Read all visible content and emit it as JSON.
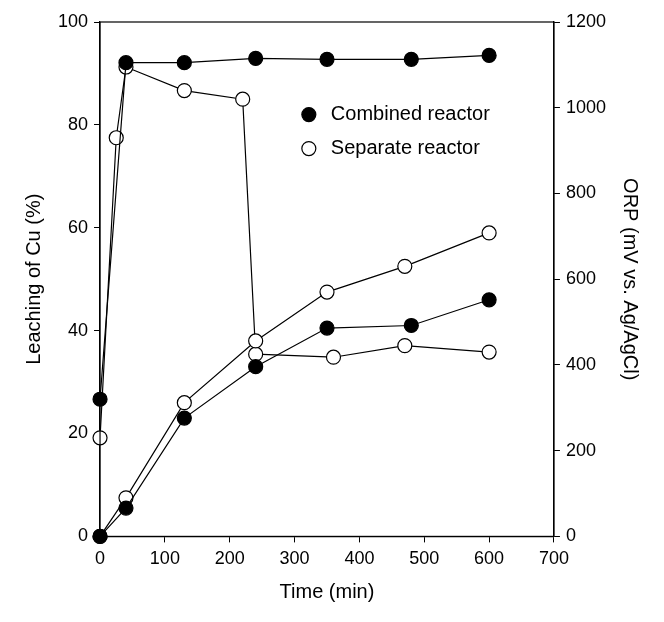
{
  "chart_data": {
    "type": "line",
    "x_label": "Time (min)",
    "y_label": "Leaching of Cu (%)",
    "y2_label": "ORP (mV vs. Ag/AgCl)",
    "xlim": [
      0,
      700
    ],
    "xticks": [
      0,
      100,
      200,
      300,
      400,
      500,
      600,
      700
    ],
    "ylim": [
      0,
      100
    ],
    "yticks": [
      0,
      20,
      40,
      60,
      80,
      100
    ],
    "y2lim": [
      0,
      1200
    ],
    "y2ticks": [
      0,
      200,
      400,
      600,
      800,
      1000,
      1200
    ],
    "grid": false,
    "legend": "upper right",
    "series": [
      {
        "name": "Combined reactor",
        "color": "#000000",
        "marker": "filled_circle",
        "axis": "y",
        "x": [
          0,
          40,
          130,
          240,
          350,
          480,
          600
        ],
        "values": [
          0,
          5.5,
          23,
          33,
          40.5,
          41,
          46
        ]
      },
      {
        "name": "Separate reactor",
        "color": "#000000",
        "marker": "open_circle",
        "axis": "y",
        "x": [
          0,
          40,
          130,
          240,
          350,
          470,
          600
        ],
        "values": [
          0,
          7.5,
          26,
          38,
          47.5,
          52.5,
          59
        ]
      },
      {
        "name": "Combined reactor",
        "color": "#000000",
        "marker": "filled_circle",
        "axis": "y2",
        "x": [
          0,
          40,
          130,
          240,
          350,
          480,
          600
        ],
        "values": [
          320,
          1105,
          1105,
          1115,
          1113,
          1113,
          1122
        ]
      },
      {
        "name": "Separate reactor",
        "color": "#000000",
        "marker": "open_circle",
        "axis": "y2",
        "x": [
          0,
          25,
          40,
          130,
          220,
          240,
          360,
          470,
          600
        ],
        "values": [
          230,
          930,
          1095,
          1040,
          1020,
          425,
          418,
          445,
          430
        ]
      }
    ]
  }
}
